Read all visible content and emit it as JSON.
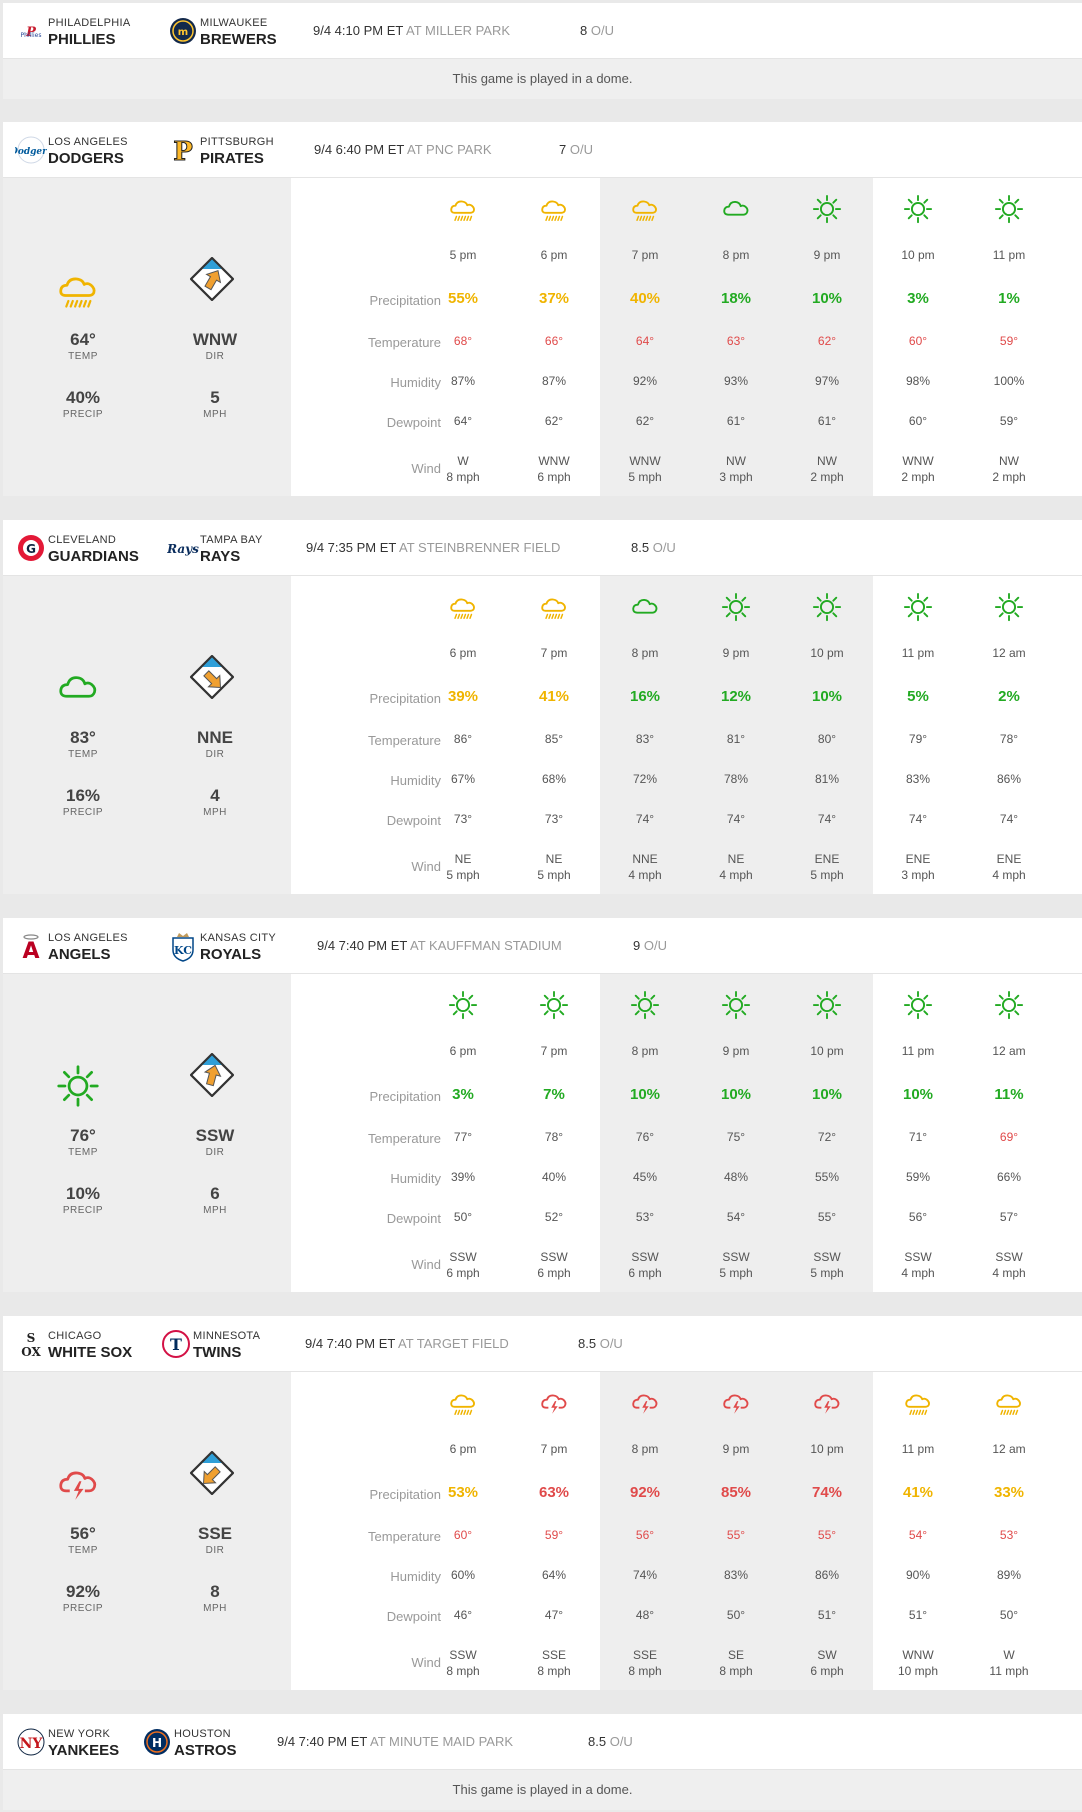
{
  "ou_suffix": "O/U",
  "row_labels": [
    "Precipitation",
    "Temperature",
    "Humidity",
    "Dewpoint",
    "Wind"
  ],
  "summary_labels": {
    "temp": "TEMP",
    "dir": "DIR",
    "precip": "PRECIP",
    "mph": "MPH"
  },
  "colors": {
    "orange": "#f0b400",
    "green": "#22aa22",
    "red": "#e04a4a",
    "arrow": "#f0a030",
    "diamond_top": "#2f9fd8"
  },
  "games": [
    {
      "away": {
        "city": "PHILADELPHIA",
        "name": "PHILLIES",
        "logo": "phillies-logo"
      },
      "home": {
        "city": "MILWAUKEE",
        "name": "BREWERS",
        "logo": "brewers-logo"
      },
      "time": "9/4 4:10 PM ET",
      "park": "AT MILLER PARK",
      "ou": "8",
      "dome": "This game is played in a dome."
    },
    {
      "away": {
        "city": "LOS ANGELES",
        "name": "DODGERS",
        "logo": "dodgers-logo"
      },
      "home": {
        "city": "PITTSBURGH",
        "name": "PIRATES",
        "logo": "pirates-logo"
      },
      "time": "9/4 6:40 PM ET",
      "park": "AT PNC PARK",
      "ou": "7",
      "summary": {
        "icon": "rain",
        "icon_color": "orange",
        "temp": "64°",
        "dir": "WNW",
        "precip": "40%",
        "mph": "5",
        "arrow_rotation": 30
      },
      "hours": [
        {
          "time": "5 pm",
          "icon": "rain",
          "color": "orange",
          "precip": "55%",
          "temp": "68°",
          "temp_color": "red",
          "humidity": "87%",
          "dewpoint": "64°",
          "wind_dir": "W",
          "wind_speed": "8 mph"
        },
        {
          "time": "6 pm",
          "icon": "rain",
          "color": "orange",
          "precip": "37%",
          "temp": "66°",
          "temp_color": "red",
          "humidity": "87%",
          "dewpoint": "62°",
          "wind_dir": "WNW",
          "wind_speed": "6 mph"
        },
        {
          "time": "7 pm",
          "icon": "rain",
          "color": "orange",
          "precip": "40%",
          "temp": "64°",
          "temp_color": "red",
          "humidity": "92%",
          "dewpoint": "62°",
          "wind_dir": "WNW",
          "wind_speed": "5 mph"
        },
        {
          "time": "8 pm",
          "icon": "cloud",
          "color": "green",
          "precip": "18%",
          "temp": "63°",
          "temp_color": "red",
          "humidity": "93%",
          "dewpoint": "61°",
          "wind_dir": "NW",
          "wind_speed": "3 mph"
        },
        {
          "time": "9 pm",
          "icon": "sun",
          "color": "green",
          "precip": "10%",
          "temp": "62°",
          "temp_color": "red",
          "humidity": "97%",
          "dewpoint": "61°",
          "wind_dir": "NW",
          "wind_speed": "2 mph"
        },
        {
          "time": "10 pm",
          "icon": "sun",
          "color": "green",
          "precip": "3%",
          "temp": "60°",
          "temp_color": "red",
          "humidity": "98%",
          "dewpoint": "60°",
          "wind_dir": "WNW",
          "wind_speed": "2 mph"
        },
        {
          "time": "11 pm",
          "icon": "sun",
          "color": "green",
          "precip": "1%",
          "temp": "59°",
          "temp_color": "red",
          "humidity": "100%",
          "dewpoint": "59°",
          "wind_dir": "NW",
          "wind_speed": "2 mph"
        }
      ]
    },
    {
      "away": {
        "city": "CLEVELAND",
        "name": "GUARDIANS",
        "logo": "guardians-logo"
      },
      "home": {
        "city": "TAMPA BAY",
        "name": "RAYS",
        "logo": "rays-logo"
      },
      "time": "9/4 7:35 PM ET",
      "park": "AT STEINBRENNER FIELD",
      "ou": "8.5",
      "summary": {
        "icon": "cloud",
        "icon_color": "green",
        "temp": "83°",
        "dir": "NNE",
        "precip": "16%",
        "mph": "4",
        "arrow_rotation": 135
      },
      "hours": [
        {
          "time": "6 pm",
          "icon": "rain",
          "color": "orange",
          "precip": "39%",
          "temp": "86°",
          "temp_color": "gray",
          "humidity": "67%",
          "dewpoint": "73°",
          "wind_dir": "NE",
          "wind_speed": "5 mph"
        },
        {
          "time": "7 pm",
          "icon": "rain",
          "color": "orange",
          "precip": "41%",
          "temp": "85°",
          "temp_color": "gray",
          "humidity": "68%",
          "dewpoint": "73°",
          "wind_dir": "NE",
          "wind_speed": "5 mph"
        },
        {
          "time": "8 pm",
          "icon": "cloud",
          "color": "green",
          "precip": "16%",
          "temp": "83°",
          "temp_color": "gray",
          "humidity": "72%",
          "dewpoint": "74°",
          "wind_dir": "NNE",
          "wind_speed": "4 mph"
        },
        {
          "time": "9 pm",
          "icon": "sun",
          "color": "green",
          "precip": "12%",
          "temp": "81°",
          "temp_color": "gray",
          "humidity": "78%",
          "dewpoint": "74°",
          "wind_dir": "NE",
          "wind_speed": "4 mph"
        },
        {
          "time": "10 pm",
          "icon": "sun",
          "color": "green",
          "precip": "10%",
          "temp": "80°",
          "temp_color": "gray",
          "humidity": "81%",
          "dewpoint": "74°",
          "wind_dir": "ENE",
          "wind_speed": "5 mph"
        },
        {
          "time": "11 pm",
          "icon": "sun",
          "color": "green",
          "precip": "5%",
          "temp": "79°",
          "temp_color": "gray",
          "humidity": "83%",
          "dewpoint": "74°",
          "wind_dir": "ENE",
          "wind_speed": "3 mph"
        },
        {
          "time": "12 am",
          "icon": "sun",
          "color": "green",
          "precip": "2%",
          "temp": "78°",
          "temp_color": "gray",
          "humidity": "86%",
          "dewpoint": "74°",
          "wind_dir": "ENE",
          "wind_speed": "4 mph"
        }
      ]
    },
    {
      "away": {
        "city": "LOS ANGELES",
        "name": "ANGELS",
        "logo": "angels-logo"
      },
      "home": {
        "city": "KANSAS CITY",
        "name": "ROYALS",
        "logo": "royals-logo"
      },
      "time": "9/4 7:40 PM ET",
      "park": "AT KAUFFMAN STADIUM",
      "ou": "9",
      "summary": {
        "icon": "sun",
        "icon_color": "green",
        "temp": "76°",
        "dir": "SSW",
        "precip": "10%",
        "mph": "6",
        "arrow_rotation": 15
      },
      "hours": [
        {
          "time": "6 pm",
          "icon": "sun",
          "color": "green",
          "precip": "3%",
          "temp": "77°",
          "temp_color": "gray",
          "humidity": "39%",
          "dewpoint": "50°",
          "wind_dir": "SSW",
          "wind_speed": "6 mph"
        },
        {
          "time": "7 pm",
          "icon": "sun",
          "color": "green",
          "precip": "7%",
          "temp": "78°",
          "temp_color": "gray",
          "humidity": "40%",
          "dewpoint": "52°",
          "wind_dir": "SSW",
          "wind_speed": "6 mph"
        },
        {
          "time": "8 pm",
          "icon": "sun",
          "color": "green",
          "precip": "10%",
          "temp": "76°",
          "temp_color": "gray",
          "humidity": "45%",
          "dewpoint": "53°",
          "wind_dir": "SSW",
          "wind_speed": "6 mph"
        },
        {
          "time": "9 pm",
          "icon": "sun",
          "color": "green",
          "precip": "10%",
          "temp": "75°",
          "temp_color": "gray",
          "humidity": "48%",
          "dewpoint": "54°",
          "wind_dir": "SSW",
          "wind_speed": "5 mph"
        },
        {
          "time": "10 pm",
          "icon": "sun",
          "color": "green",
          "precip": "10%",
          "temp": "72°",
          "temp_color": "gray",
          "humidity": "55%",
          "dewpoint": "55°",
          "wind_dir": "SSW",
          "wind_speed": "5 mph"
        },
        {
          "time": "11 pm",
          "icon": "sun",
          "color": "green",
          "precip": "10%",
          "temp": "71°",
          "temp_color": "gray",
          "humidity": "59%",
          "dewpoint": "56°",
          "wind_dir": "SSW",
          "wind_speed": "4 mph"
        },
        {
          "time": "12 am",
          "icon": "sun",
          "color": "green",
          "precip": "11%",
          "temp": "69°",
          "temp_color": "red",
          "humidity": "66%",
          "dewpoint": "57°",
          "wind_dir": "SSW",
          "wind_speed": "4 mph"
        }
      ]
    },
    {
      "away": {
        "city": "CHICAGO",
        "name": "WHITE SOX",
        "logo": "white-sox-logo"
      },
      "home": {
        "city": "MINNESOTA",
        "name": "TWINS",
        "logo": "twins-logo"
      },
      "time": "9/4 7:40 PM ET",
      "park": "AT TARGET FIELD",
      "ou": "8.5",
      "summary": {
        "icon": "storm",
        "icon_color": "red",
        "temp": "56°",
        "dir": "SSE",
        "precip": "92%",
        "mph": "8",
        "arrow_rotation": 225
      },
      "hours": [
        {
          "time": "6 pm",
          "icon": "rain",
          "color": "orange",
          "precip": "53%",
          "temp": "60°",
          "temp_color": "red",
          "humidity": "60%",
          "dewpoint": "46°",
          "wind_dir": "SSW",
          "wind_speed": "8 mph"
        },
        {
          "time": "7 pm",
          "icon": "storm",
          "color": "red",
          "precip": "63%",
          "temp": "59°",
          "temp_color": "red",
          "humidity": "64%",
          "dewpoint": "47°",
          "wind_dir": "SSE",
          "wind_speed": "8 mph"
        },
        {
          "time": "8 pm",
          "icon": "storm",
          "color": "red",
          "precip": "92%",
          "temp": "56°",
          "temp_color": "red",
          "humidity": "74%",
          "dewpoint": "48°",
          "wind_dir": "SSE",
          "wind_speed": "8 mph"
        },
        {
          "time": "9 pm",
          "icon": "storm",
          "color": "red",
          "precip": "85%",
          "temp": "55°",
          "temp_color": "red",
          "humidity": "83%",
          "dewpoint": "50°",
          "wind_dir": "SE",
          "wind_speed": "8 mph"
        },
        {
          "time": "10 pm",
          "icon": "storm",
          "color": "red",
          "precip": "74%",
          "temp": "55°",
          "temp_color": "red",
          "humidity": "86%",
          "dewpoint": "51°",
          "wind_dir": "SW",
          "wind_speed": "6 mph"
        },
        {
          "time": "11 pm",
          "icon": "rain",
          "color": "orange",
          "precip": "41%",
          "temp": "54°",
          "temp_color": "red",
          "humidity": "90%",
          "dewpoint": "51°",
          "wind_dir": "WNW",
          "wind_speed": "10 mph"
        },
        {
          "time": "12 am",
          "icon": "rain",
          "color": "orange",
          "precip": "33%",
          "temp": "53°",
          "temp_color": "red",
          "humidity": "89%",
          "dewpoint": "50°",
          "wind_dir": "W",
          "wind_speed": "11 mph"
        }
      ]
    },
    {
      "away": {
        "city": "NEW YORK",
        "name": "YANKEES",
        "logo": "yankees-logo"
      },
      "home": {
        "city": "HOUSTON",
        "name": "ASTROS",
        "logo": "astros-logo"
      },
      "time": "9/4 7:40 PM ET",
      "park": "AT MINUTE MAID PARK",
      "ou": "8.5",
      "dome": "This game is played in a dome."
    }
  ]
}
